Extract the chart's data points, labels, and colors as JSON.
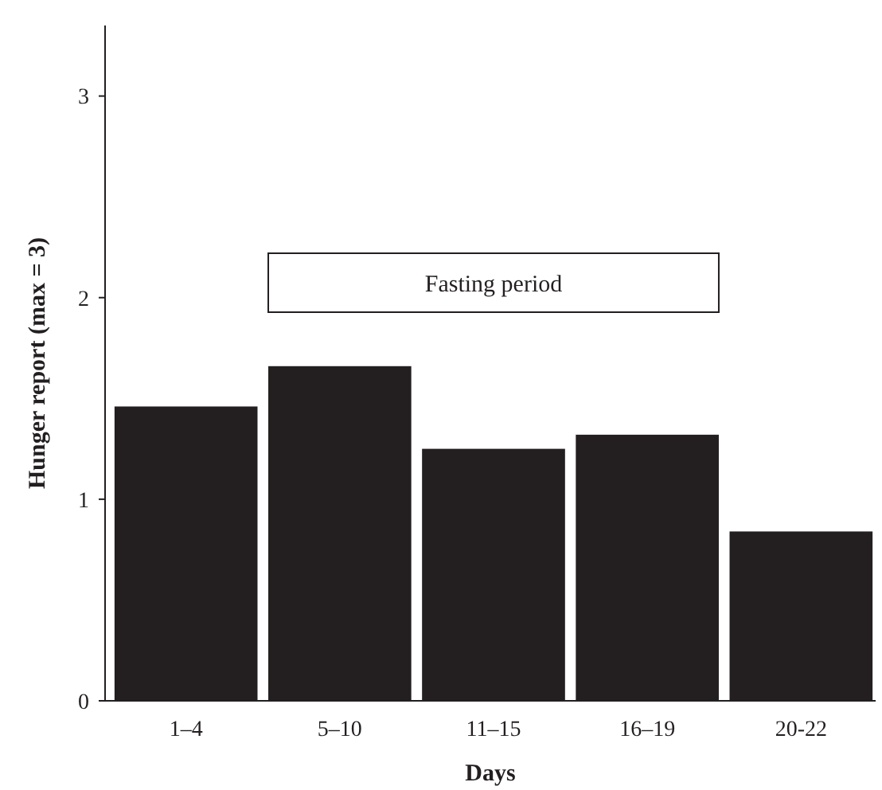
{
  "chart_data": {
    "type": "bar",
    "xlabel": "Days",
    "ylabel": "Hunger report (max = 3)",
    "categories": [
      "1–4",
      "5–10",
      "11–15",
      "16–19",
      "20-22"
    ],
    "values": [
      1.46,
      1.66,
      1.25,
      1.32,
      0.84
    ],
    "color": "#231f20",
    "ylim": [
      0,
      3.35
    ],
    "yticks": [
      0,
      1,
      2,
      3
    ],
    "grid": false,
    "annotations": [
      "Fasting period"
    ]
  }
}
